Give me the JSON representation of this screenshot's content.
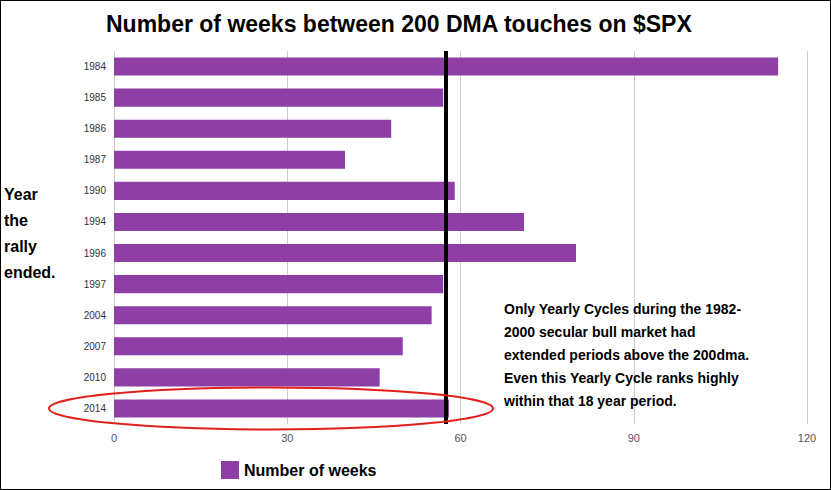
{
  "chart_data": {
    "type": "bar",
    "title": "Number of weeks between 200 DMA touches on $SPX",
    "y_label": "Year the rally ended.",
    "annotation": "Only Yearly Cycles during the 1982-\n2000 secular bull market had\nextended periods above the 200dma.\nEven this Yearly Cycle ranks highly\nwithin that 18 year period.",
    "categories": [
      "1984",
      "1985",
      "1986",
      "1987",
      "1990",
      "1994",
      "1996",
      "1997",
      "2004",
      "2007",
      "2010",
      "2014"
    ],
    "series": [
      {
        "name": "Number of weeks",
        "color": "#8e3fa6",
        "values": [
          115,
          57,
          48,
          40,
          59,
          71,
          80,
          57,
          55,
          50,
          46,
          58
        ]
      }
    ],
    "xlim": [
      0,
      120
    ],
    "xticks": [
      0,
      30,
      60,
      90,
      120
    ],
    "orientation": "horizontal",
    "grid": true,
    "legend": "bottom",
    "reference_line": 57.5,
    "highlight": "2014"
  }
}
